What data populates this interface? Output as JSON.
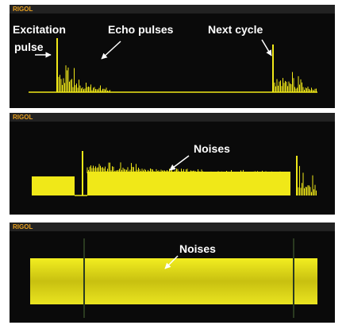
{
  "panels": [
    {
      "brand": "RIGOL",
      "annotations": [
        "Excitation",
        "pulse",
        "Echo pulses",
        "Next cycle"
      ]
    },
    {
      "brand": "RIGOL",
      "annotations": [
        "Noises"
      ]
    },
    {
      "brand": "RIGOL",
      "annotations": [
        "Noises"
      ]
    }
  ]
}
